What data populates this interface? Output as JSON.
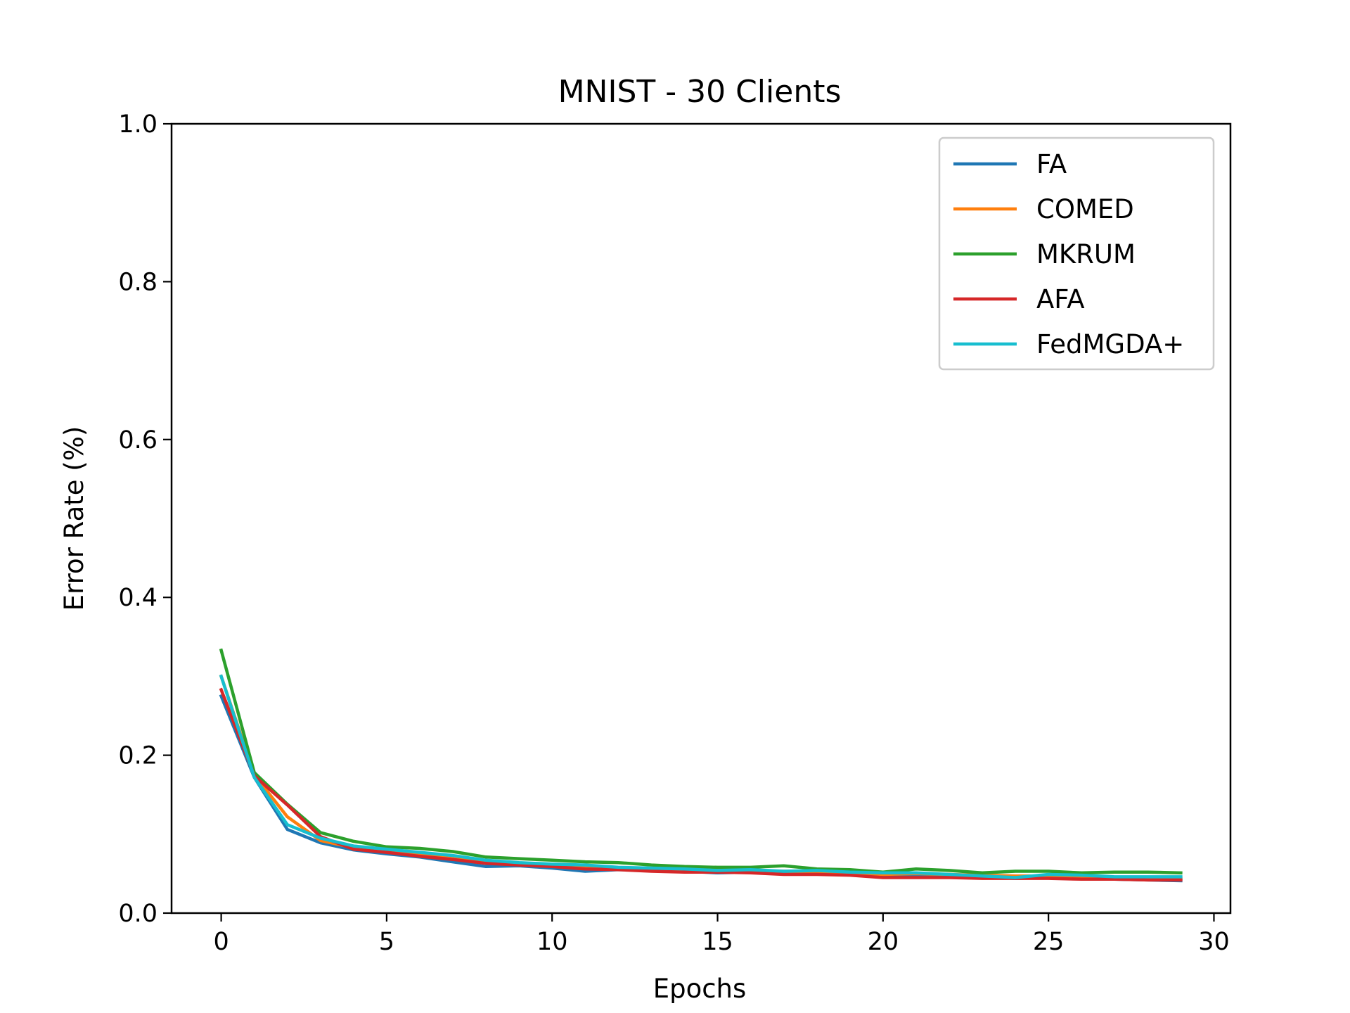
{
  "chart_data": {
    "type": "line",
    "title": "MNIST - 30 Clients",
    "xlabel": "Epochs",
    "ylabel": "Error Rate (%)",
    "xlim": [
      -1.5,
      30.5
    ],
    "ylim": [
      0.0,
      1.0
    ],
    "xticks": [
      0,
      5,
      10,
      15,
      20,
      25,
      30
    ],
    "xtick_labels": [
      "0",
      "5",
      "10",
      "15",
      "20",
      "25",
      "30"
    ],
    "yticks": [
      0.0,
      0.2,
      0.4,
      0.6,
      0.8,
      1.0
    ],
    "ytick_labels": [
      "0.0",
      "0.2",
      "0.4",
      "0.6",
      "0.8",
      "1.0"
    ],
    "grid": false,
    "legend_position": "top-right",
    "x": [
      0,
      1,
      2,
      3,
      4,
      5,
      6,
      7,
      8,
      9,
      10,
      11,
      12,
      13,
      14,
      15,
      16,
      17,
      18,
      19,
      20,
      21,
      22,
      23,
      24,
      25,
      26,
      27,
      28,
      29
    ],
    "series": [
      {
        "name": "FA",
        "color": "#1f77b4",
        "values": [
          0.275,
          0.172,
          0.106,
          0.089,
          0.08,
          0.075,
          0.071,
          0.065,
          0.059,
          0.06,
          0.057,
          0.053,
          0.055,
          0.054,
          0.053,
          0.051,
          0.052,
          0.051,
          0.051,
          0.05,
          0.048,
          0.048,
          0.047,
          0.046,
          0.044,
          0.045,
          0.044,
          0.043,
          0.042,
          0.041
        ]
      },
      {
        "name": "COMED",
        "color": "#ff7f0e",
        "values": [
          0.3,
          0.175,
          0.122,
          0.092,
          0.083,
          0.079,
          0.074,
          0.069,
          0.064,
          0.062,
          0.06,
          0.058,
          0.057,
          0.056,
          0.055,
          0.054,
          0.054,
          0.053,
          0.052,
          0.051,
          0.049,
          0.05,
          0.049,
          0.048,
          0.047,
          0.047,
          0.046,
          0.045,
          0.045,
          0.044
        ]
      },
      {
        "name": "MKRUM",
        "color": "#2ca02c",
        "values": [
          0.333,
          0.178,
          0.138,
          0.102,
          0.091,
          0.084,
          0.082,
          0.078,
          0.071,
          0.069,
          0.067,
          0.065,
          0.064,
          0.061,
          0.059,
          0.058,
          0.058,
          0.06,
          0.056,
          0.055,
          0.052,
          0.056,
          0.054,
          0.051,
          0.053,
          0.053,
          0.051,
          0.052,
          0.052,
          0.051
        ]
      },
      {
        "name": "AFA",
        "color": "#d62728",
        "values": [
          0.283,
          0.174,
          0.137,
          0.097,
          0.081,
          0.077,
          0.072,
          0.068,
          0.063,
          0.061,
          0.059,
          0.056,
          0.055,
          0.053,
          0.052,
          0.052,
          0.051,
          0.049,
          0.049,
          0.048,
          0.045,
          0.045,
          0.045,
          0.044,
          0.044,
          0.044,
          0.043,
          0.043,
          0.042,
          0.042
        ]
      },
      {
        "name": "FedMGDA+",
        "color": "#17becf",
        "values": [
          0.3,
          0.172,
          0.112,
          0.095,
          0.085,
          0.081,
          0.077,
          0.073,
          0.067,
          0.064,
          0.062,
          0.061,
          0.058,
          0.057,
          0.056,
          0.054,
          0.055,
          0.053,
          0.054,
          0.052,
          0.051,
          0.051,
          0.049,
          0.047,
          0.045,
          0.049,
          0.048,
          0.046,
          0.046,
          0.046
        ]
      }
    ]
  }
}
